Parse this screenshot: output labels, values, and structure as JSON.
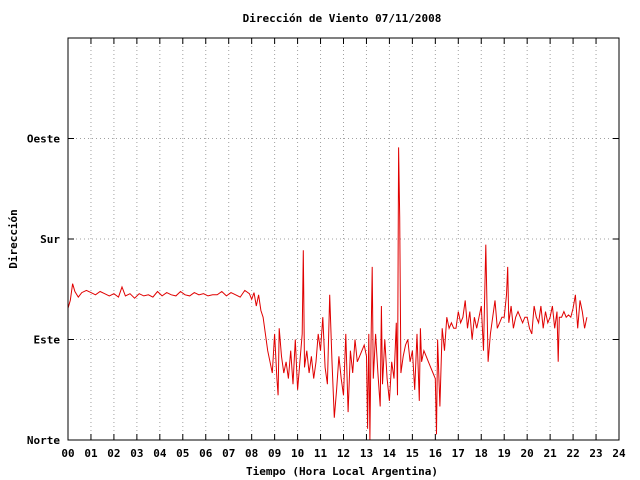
{
  "chart_data": {
    "type": "line",
    "title": "Dirección de Viento 07/11/2008",
    "xlabel": "Tiempo (Hora Local Argentina)",
    "ylabel": "Dirección",
    "xlim": [
      0,
      24
    ],
    "x_ticks": [
      "00",
      "01",
      "02",
      "03",
      "04",
      "05",
      "06",
      "07",
      "08",
      "09",
      "10",
      "11",
      "12",
      "13",
      "14",
      "15",
      "16",
      "17",
      "18",
      "19",
      "20",
      "21",
      "22",
      "23",
      "24"
    ],
    "y_ticks": [
      {
        "value": 0,
        "label": "Norte"
      },
      {
        "value": 90,
        "label": "Este"
      },
      {
        "value": 180,
        "label": "Sur"
      },
      {
        "value": 270,
        "label": "Oeste"
      }
    ],
    "ylim": [
      0,
      360
    ],
    "grid": true,
    "colors": {
      "series": "#e00000",
      "grid": "#a0a0a0",
      "frame": "#000000"
    },
    "series": [
      {
        "values": [
          [
            0.0,
            118
          ],
          [
            0.1,
            125
          ],
          [
            0.2,
            140
          ],
          [
            0.3,
            133
          ],
          [
            0.45,
            128
          ],
          [
            0.6,
            132
          ],
          [
            0.8,
            134
          ],
          [
            1.0,
            132
          ],
          [
            1.2,
            130
          ],
          [
            1.4,
            133
          ],
          [
            1.6,
            131
          ],
          [
            1.8,
            129
          ],
          [
            2.0,
            131
          ],
          [
            2.2,
            128
          ],
          [
            2.35,
            137
          ],
          [
            2.5,
            129
          ],
          [
            2.7,
            131
          ],
          [
            2.9,
            127
          ],
          [
            3.1,
            131
          ],
          [
            3.3,
            129
          ],
          [
            3.5,
            130
          ],
          [
            3.7,
            128
          ],
          [
            3.9,
            133
          ],
          [
            4.1,
            129
          ],
          [
            4.3,
            132
          ],
          [
            4.5,
            130
          ],
          [
            4.7,
            129
          ],
          [
            4.9,
            133
          ],
          [
            5.1,
            130
          ],
          [
            5.3,
            129
          ],
          [
            5.5,
            132
          ],
          [
            5.7,
            130
          ],
          [
            5.9,
            131
          ],
          [
            6.1,
            129
          ],
          [
            6.3,
            130
          ],
          [
            6.5,
            130
          ],
          [
            6.7,
            133
          ],
          [
            6.9,
            129
          ],
          [
            7.1,
            132
          ],
          [
            7.3,
            130
          ],
          [
            7.5,
            128
          ],
          [
            7.7,
            134
          ],
          [
            7.9,
            131
          ],
          [
            8.0,
            126
          ],
          [
            8.1,
            132
          ],
          [
            8.2,
            120
          ],
          [
            8.3,
            130
          ],
          [
            8.4,
            116
          ],
          [
            8.5,
            110
          ],
          [
            8.6,
            95
          ],
          [
            8.7,
            80
          ],
          [
            8.8,
            70
          ],
          [
            8.9,
            60
          ],
          [
            9.0,
            95
          ],
          [
            9.1,
            55
          ],
          [
            9.15,
            40
          ],
          [
            9.2,
            100
          ],
          [
            9.3,
            75
          ],
          [
            9.4,
            60
          ],
          [
            9.5,
            70
          ],
          [
            9.6,
            55
          ],
          [
            9.7,
            80
          ],
          [
            9.8,
            50
          ],
          [
            9.9,
            90
          ],
          [
            10.0,
            45
          ],
          [
            10.1,
            70
          ],
          [
            10.2,
            95
          ],
          [
            10.25,
            170
          ],
          [
            10.3,
            65
          ],
          [
            10.4,
            80
          ],
          [
            10.5,
            60
          ],
          [
            10.6,
            75
          ],
          [
            10.7,
            55
          ],
          [
            10.8,
            70
          ],
          [
            10.9,
            95
          ],
          [
            11.0,
            80
          ],
          [
            11.1,
            110
          ],
          [
            11.2,
            65
          ],
          [
            11.3,
            50
          ],
          [
            11.4,
            130
          ],
          [
            11.5,
            70
          ],
          [
            11.6,
            20
          ],
          [
            11.7,
            45
          ],
          [
            11.8,
            75
          ],
          [
            11.9,
            55
          ],
          [
            12.0,
            40
          ],
          [
            12.1,
            95
          ],
          [
            12.2,
            25
          ],
          [
            12.3,
            80
          ],
          [
            12.4,
            60
          ],
          [
            12.5,
            90
          ],
          [
            12.6,
            70
          ],
          [
            12.7,
            75
          ],
          [
            12.8,
            80
          ],
          [
            12.9,
            85
          ],
          [
            13.0,
            75
          ],
          [
            13.05,
            10
          ],
          [
            13.1,
            95
          ],
          [
            13.15,
            0
          ],
          [
            13.2,
            85
          ],
          [
            13.25,
            155
          ],
          [
            13.3,
            55
          ],
          [
            13.4,
            95
          ],
          [
            13.5,
            60
          ],
          [
            13.6,
            30
          ],
          [
            13.65,
            120
          ],
          [
            13.7,
            50
          ],
          [
            13.8,
            90
          ],
          [
            13.9,
            55
          ],
          [
            14.0,
            35
          ],
          [
            14.1,
            70
          ],
          [
            14.2,
            55
          ],
          [
            14.3,
            105
          ],
          [
            14.35,
            40
          ],
          [
            14.4,
            262
          ],
          [
            14.45,
            200
          ],
          [
            14.5,
            60
          ],
          [
            14.6,
            75
          ],
          [
            14.7,
            85
          ],
          [
            14.8,
            90
          ],
          [
            14.9,
            70
          ],
          [
            15.0,
            80
          ],
          [
            15.1,
            45
          ],
          [
            15.2,
            95
          ],
          [
            15.3,
            35
          ],
          [
            15.35,
            100
          ],
          [
            15.4,
            70
          ],
          [
            15.5,
            80
          ],
          [
            15.6,
            75
          ],
          [
            15.7,
            70
          ],
          [
            15.8,
            65
          ],
          [
            15.9,
            60
          ],
          [
            16.0,
            55
          ],
          [
            16.05,
            5
          ],
          [
            16.1,
            90
          ],
          [
            16.2,
            30
          ],
          [
            16.3,
            100
          ],
          [
            16.4,
            80
          ],
          [
            16.5,
            110
          ],
          [
            16.6,
            100
          ],
          [
            16.7,
            105
          ],
          [
            16.8,
            100
          ],
          [
            16.9,
            100
          ],
          [
            17.0,
            115
          ],
          [
            17.1,
            105
          ],
          [
            17.2,
            110
          ],
          [
            17.3,
            125
          ],
          [
            17.4,
            100
          ],
          [
            17.5,
            115
          ],
          [
            17.6,
            90
          ],
          [
            17.7,
            110
          ],
          [
            17.8,
            100
          ],
          [
            17.9,
            110
          ],
          [
            18.0,
            120
          ],
          [
            18.1,
            80
          ],
          [
            18.2,
            175
          ],
          [
            18.3,
            70
          ],
          [
            18.4,
            95
          ],
          [
            18.5,
            110
          ],
          [
            18.6,
            125
          ],
          [
            18.7,
            100
          ],
          [
            18.8,
            105
          ],
          [
            18.9,
            110
          ],
          [
            19.0,
            110
          ],
          [
            19.1,
            130
          ],
          [
            19.15,
            155
          ],
          [
            19.2,
            105
          ],
          [
            19.3,
            120
          ],
          [
            19.4,
            100
          ],
          [
            19.5,
            110
          ],
          [
            19.6,
            115
          ],
          [
            19.7,
            110
          ],
          [
            19.8,
            105
          ],
          [
            19.9,
            110
          ],
          [
            20.0,
            110
          ],
          [
            20.1,
            100
          ],
          [
            20.2,
            95
          ],
          [
            20.3,
            120
          ],
          [
            20.4,
            110
          ],
          [
            20.5,
            105
          ],
          [
            20.6,
            120
          ],
          [
            20.7,
            100
          ],
          [
            20.8,
            115
          ],
          [
            20.9,
            105
          ],
          [
            21.0,
            110
          ],
          [
            21.1,
            120
          ],
          [
            21.2,
            100
          ],
          [
            21.3,
            115
          ],
          [
            21.35,
            70
          ],
          [
            21.4,
            110
          ],
          [
            21.5,
            110
          ],
          [
            21.6,
            115
          ],
          [
            21.7,
            110
          ],
          [
            21.8,
            112
          ],
          [
            21.9,
            110
          ],
          [
            22.0,
            118
          ],
          [
            22.1,
            130
          ],
          [
            22.2,
            100
          ],
          [
            22.3,
            125
          ],
          [
            22.4,
            115
          ],
          [
            22.5,
            100
          ],
          [
            22.6,
            110
          ]
        ]
      }
    ]
  }
}
